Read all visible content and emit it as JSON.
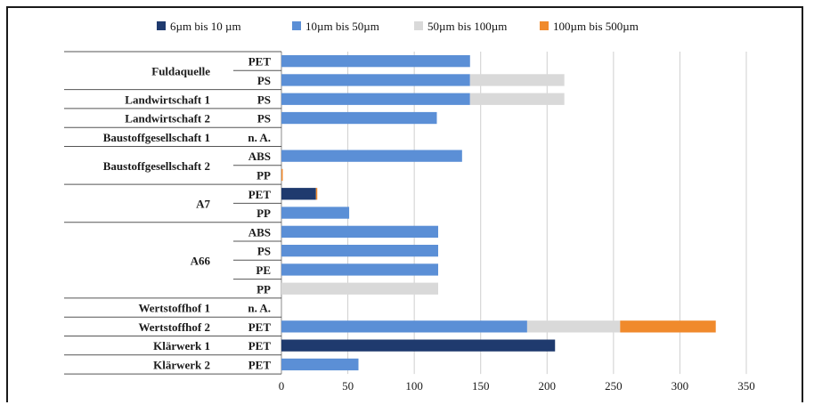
{
  "chart_data": {
    "type": "bar",
    "orientation": "horizontal",
    "stacked": true,
    "xlim": [
      0,
      350
    ],
    "x_ticks": [
      "0",
      "50",
      "100",
      "150",
      "200",
      "250",
      "300",
      "350"
    ],
    "grid": true,
    "legend_position": "top",
    "series": [
      {
        "name": "6µm bis 10 µm",
        "color": "#1f3a6e"
      },
      {
        "name": "10µm bis 50µm",
        "color": "#5b8fd6"
      },
      {
        "name": "50µm bis 100µm",
        "color": "#d9d9d9"
      },
      {
        "name": "100µm bis 500µm",
        "color": "#f08a2c"
      }
    ],
    "groups": [
      {
        "label": "Fuldaquelle",
        "rows": [
          {
            "type": "PET",
            "values": [
              0,
              142,
              0,
              0
            ]
          },
          {
            "type": "PS",
            "values": [
              0,
              142,
              71,
              0
            ]
          }
        ]
      },
      {
        "label": "Landwirtschaft 1",
        "rows": [
          {
            "type": "PS",
            "values": [
              0,
              142,
              71,
              0
            ]
          }
        ]
      },
      {
        "label": "Landwirtschaft 2",
        "rows": [
          {
            "type": "PS",
            "values": [
              0,
              117,
              0,
              0
            ]
          }
        ]
      },
      {
        "label": "Baustoffgesellschaft 1",
        "rows": [
          {
            "type": "n. A.",
            "values": [
              0,
              0,
              0,
              0
            ]
          }
        ]
      },
      {
        "label": "Baustoffgesellschaft 2",
        "rows": [
          {
            "type": "ABS",
            "values": [
              0,
              136,
              0,
              0
            ]
          },
          {
            "type": "PP",
            "values": [
              0,
              0,
              0,
              1
            ]
          }
        ]
      },
      {
        "label": "A7",
        "rows": [
          {
            "type": "PET",
            "values": [
              26,
              0,
              0,
              1
            ]
          },
          {
            "type": "PP",
            "values": [
              0,
              51,
              0,
              0
            ]
          }
        ]
      },
      {
        "label": "A66",
        "rows": [
          {
            "type": "ABS",
            "values": [
              0,
              118,
              0,
              0
            ]
          },
          {
            "type": "PS",
            "values": [
              0,
              118,
              0,
              0
            ]
          },
          {
            "type": "PE",
            "values": [
              0,
              118,
              0,
              0
            ]
          },
          {
            "type": "PP",
            "values": [
              0,
              0,
              118,
              0
            ]
          }
        ]
      },
      {
        "label": "Wertstoffhof 1",
        "rows": [
          {
            "type": "n. A.",
            "values": [
              0,
              0,
              0,
              0
            ]
          }
        ]
      },
      {
        "label": "Wertstoffhof 2",
        "rows": [
          {
            "type": "PET",
            "values": [
              0,
              185,
              70,
              72
            ]
          }
        ]
      },
      {
        "label": "Klärwerk 1",
        "rows": [
          {
            "type": "PET",
            "values": [
              206,
              0,
              0,
              0
            ]
          }
        ]
      },
      {
        "label": "Klärwerk 2",
        "rows": [
          {
            "type": "PET",
            "values": [
              0,
              58,
              0,
              0
            ]
          }
        ]
      }
    ]
  }
}
